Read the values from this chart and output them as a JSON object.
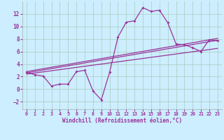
{
  "xlabel": "Windchill (Refroidissement éolien,°C)",
  "bg_color": "#cceeff",
  "grid_color": "#aaccbb",
  "line_color": "#993399",
  "xlim": [
    -0.5,
    23.5
  ],
  "ylim": [
    -3.2,
    14.0
  ],
  "yticks": [
    -2,
    0,
    2,
    4,
    6,
    8,
    10,
    12
  ],
  "xticks": [
    0,
    1,
    2,
    3,
    4,
    5,
    6,
    7,
    8,
    9,
    10,
    11,
    12,
    13,
    14,
    15,
    16,
    17,
    18,
    19,
    20,
    21,
    22,
    23
  ],
  "line1_x": [
    0,
    1,
    2,
    3,
    4,
    5,
    6,
    7,
    8,
    9,
    10,
    11,
    12,
    13,
    14,
    15,
    16,
    17,
    18,
    19,
    20,
    21,
    22,
    23
  ],
  "line1_y": [
    2.7,
    2.3,
    2.1,
    0.5,
    0.8,
    0.8,
    2.8,
    3.0,
    -0.3,
    -1.7,
    2.7,
    8.3,
    10.7,
    10.9,
    13.0,
    12.4,
    12.6,
    10.6,
    7.2,
    7.1,
    6.6,
    6.0,
    7.9,
    7.7
  ],
  "line2_x": [
    0,
    23
  ],
  "line2_y": [
    2.6,
    7.8
  ],
  "line3_x": [
    0,
    23
  ],
  "line3_y": [
    2.4,
    6.5
  ],
  "line4_x": [
    0,
    23
  ],
  "line4_y": [
    2.8,
    8.1
  ]
}
